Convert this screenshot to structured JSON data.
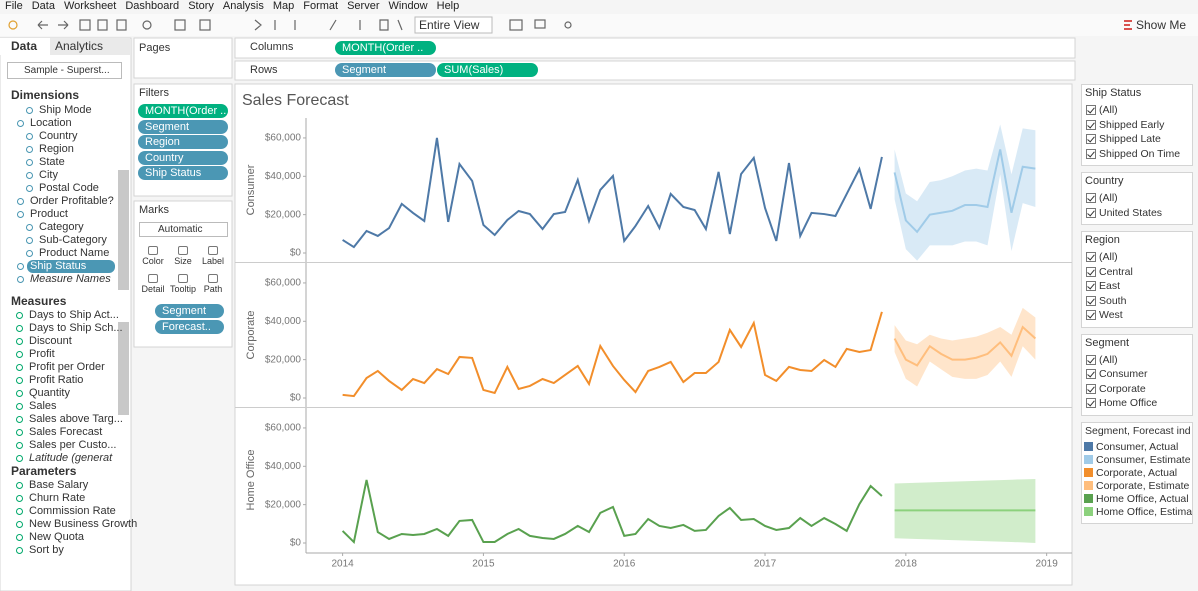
{
  "menu": [
    "File",
    "Data",
    "Worksheet",
    "Dashboard",
    "Story",
    "Analysis",
    "Map",
    "Format",
    "Server",
    "Window",
    "Help"
  ],
  "toolbar": {
    "fit": "Entire View",
    "show_me": "Show Me"
  },
  "data_pane": {
    "tabs": [
      "Data",
      "Analytics"
    ],
    "datasource": "Sample - Superst...",
    "dimensions": {
      "title": "Dimensions",
      "items": [
        "Ship Mode",
        "Location",
        "Country",
        "Region",
        "State",
        "City",
        "Postal Code",
        "Order Profitable?",
        "Product",
        "Category",
        "Sub-Category",
        "Product Name",
        "Ship Status",
        "Measure Names"
      ]
    },
    "measures": {
      "title": "Measures",
      "items": [
        "Days to Ship Act...",
        "Days to Ship Sch...",
        "Discount",
        "Profit",
        "Profit per Order",
        "Profit Ratio",
        "Quantity",
        "Sales",
        "Sales above Targ...",
        "Sales Forecast",
        "Sales per Custo...",
        "Latitude (generat"
      ]
    },
    "parameters": {
      "title": "Parameters",
      "items": [
        "Base Salary",
        "Churn Rate",
        "Commission Rate",
        "New Business Growth",
        "New Quota",
        "Sort by"
      ]
    }
  },
  "cards": {
    "pages": "Pages",
    "filters": {
      "title": "Filters",
      "pills": [
        "MONTH(Order ..",
        "Segment",
        "Region",
        "Country",
        "Ship Status"
      ]
    },
    "marks": {
      "title": "Marks",
      "type": "Automatic",
      "buttons": [
        "Color",
        "Size",
        "Label",
        "Detail",
        "Tooltip",
        "Path"
      ],
      "pills": [
        "Segment",
        "Forecast.."
      ]
    }
  },
  "shelves": {
    "columns": {
      "label": "Columns",
      "pills": [
        "MONTH(Order .."
      ]
    },
    "rows": {
      "label": "Rows",
      "pills": [
        "Segment",
        "SUM(Sales)"
      ]
    }
  },
  "quick_filters": [
    {
      "title": "Ship Status",
      "items": [
        "(All)",
        "Shipped Early",
        "Shipped Late",
        "Shipped On Time"
      ]
    },
    {
      "title": "Country",
      "items": [
        "(All)",
        "United States"
      ]
    },
    {
      "title": "Region",
      "items": [
        "(All)",
        "Central",
        "East",
        "South",
        "West"
      ]
    },
    {
      "title": "Segment",
      "items": [
        "(All)",
        "Consumer",
        "Corporate",
        "Home Office"
      ]
    }
  ],
  "chart_data": {
    "type": "line",
    "title": "Sales Forecast",
    "legend_title": "Segment, Forecast ind..",
    "xlim": [
      2013.74,
      2019.18
    ],
    "xticks": [
      2014,
      2015,
      2016,
      2017,
      2018,
      2019
    ],
    "x": [
      2014,
      2014.08,
      2014.17,
      2014.25,
      2014.33,
      2014.42,
      2014.5,
      2014.58,
      2014.67,
      2014.75,
      2014.83,
      2014.92,
      2015,
      2015.08,
      2015.17,
      2015.25,
      2015.33,
      2015.42,
      2015.5,
      2015.58,
      2015.67,
      2015.75,
      2015.83,
      2015.92,
      2016,
      2016.08,
      2016.17,
      2016.25,
      2016.33,
      2016.42,
      2016.5,
      2016.58,
      2016.67,
      2016.75,
      2016.83,
      2016.92,
      2017,
      2017.08,
      2017.17,
      2017.25,
      2017.33,
      2017.42,
      2017.5,
      2017.58,
      2017.67,
      2017.75,
      2017.83
    ],
    "forecast_x": [
      2017.92,
      2018,
      2018.08,
      2018.17,
      2018.25,
      2018.33,
      2018.42,
      2018.5,
      2018.58,
      2018.67,
      2018.75,
      2018.83,
      2018.92
    ],
    "panes": [
      {
        "label": "Consumer",
        "ylim": [
          -4700,
          70400
        ],
        "yticks": [
          {
            "value": 0,
            "label": "$0"
          },
          {
            "value": 20000,
            "label": "$20,000"
          },
          {
            "value": 40000,
            "label": "$40,000"
          },
          {
            "value": 60000,
            "label": "$60,000"
          }
        ],
        "series": [
          {
            "name": "Consumer, Actual",
            "color": "#4e79a7",
            "values": [
              6800,
              3100,
              11500,
              8900,
              13000,
              25600,
              20900,
              16700,
              60000,
              16200,
              46400,
              37600,
              14600,
              9400,
              17200,
              21900,
              20300,
              12500,
              20300,
              21400,
              38100,
              16700,
              32900,
              40200,
              6300,
              14100,
              24500,
              13000,
              30800,
              24000,
              22400,
              12500,
              42300,
              9900,
              41200,
              49600,
              23500,
              6300,
              46900,
              8900,
              20900,
              20300,
              19300,
              30800,
              43800,
              23000,
              50100
            ]
          },
          {
            "name": "Consumer, Estimate",
            "color": "#a0cbe8",
            "values": [
              42000,
              17000,
              11000,
              20000,
              21000,
              22000,
              25000,
              25000,
              24000,
              54000,
              21000,
              45000,
              44000
            ],
            "lower": [
              28000,
              2000,
              -4000,
              4000,
              4000,
              4000,
              6000,
              6000,
              4000,
              41000,
              1000,
              26000,
              24000
            ],
            "upper": [
              54000,
              31000,
              27000,
              37000,
              38000,
              40000,
              43000,
              44000,
              43000,
              67000,
              41000,
              65000,
              64000
            ]
          }
        ]
      },
      {
        "label": "Corporate",
        "ylim": [
          -4700,
          70400
        ],
        "yticks": [
          {
            "value": 0,
            "label": "$0"
          },
          {
            "value": 20000,
            "label": "$20,000"
          },
          {
            "value": 40000,
            "label": "$40,000"
          },
          {
            "value": 60000,
            "label": "$60,000"
          }
        ],
        "series": [
          {
            "name": "Corporate, Actual",
            "color": "#f28e2b",
            "values": [
              1600,
              1000,
              10400,
              14100,
              8900,
              4200,
              9900,
              7800,
              15100,
              12500,
              21400,
              20900,
              4200,
              2600,
              16200,
              4700,
              6300,
              9900,
              7800,
              12000,
              16700,
              7300,
              27100,
              16700,
              9400,
              3100,
              14100,
              16200,
              18800,
              8300,
              13000,
              13000,
              18800,
              35500,
              26600,
              39100,
              12000,
              8900,
              16200,
              14600,
              14100,
              19800,
              16200,
              25600,
              24000,
              25000,
              44900
            ]
          },
          {
            "name": "Corporate, Estimate",
            "color": "#ffbe7d",
            "values": [
              31000,
              20000,
              17000,
              27000,
              23000,
              20000,
              20000,
              21000,
              23000,
              29000,
              22000,
              37000,
              31000
            ],
            "lower": [
              24000,
              10000,
              6000,
              19000,
              15000,
              11000,
              10000,
              10000,
              12000,
              19000,
              11000,
              27000,
              20000
            ],
            "upper": [
              38000,
              30000,
              28000,
              33000,
              31000,
              30000,
              31000,
              32000,
              34000,
              37000,
              33000,
              47000,
              42000
            ]
          }
        ]
      },
      {
        "label": "Home Office",
        "ylim": [
          -4700,
          70400
        ],
        "yticks": [
          {
            "value": 0,
            "label": "$0"
          },
          {
            "value": 20000,
            "label": "$20,000"
          },
          {
            "value": 40000,
            "label": "$40,000"
          },
          {
            "value": 60000,
            "label": "$60,000"
          }
        ],
        "series": [
          {
            "name": "Home Office, Actual",
            "color": "#59a14f",
            "values": [
              6300,
              500,
              32900,
              5700,
              2100,
              4700,
              4200,
              4700,
              7300,
              3700,
              11500,
              12000,
              500,
              500,
              4700,
              7300,
              3700,
              2600,
              2100,
              4700,
              8900,
              5700,
              15700,
              18800,
              3700,
              4700,
              12500,
              8900,
              7800,
              9400,
              6300,
              6800,
              14100,
              18300,
              12000,
              12500,
              8900,
              6800,
              7800,
              13000,
              8900,
              13000,
              9900,
              6300,
              20300,
              29700,
              24500
            ]
          },
          {
            "name": "Home Office, Estima..",
            "color": "#8cd17d",
            "values": [
              17000,
              17000,
              17000,
              17000,
              17000,
              17000,
              17000,
              17000,
              17000,
              17000,
              17000,
              17000,
              17000
            ],
            "lower": [
              2500,
              2300,
              2100,
              1900,
              1700,
              1500,
              1300,
              1100,
              900,
              700,
              500,
              300,
              0
            ],
            "upper": [
              31000,
              31200,
              31400,
              31600,
              31800,
              32000,
              32200,
              32400,
              32600,
              32800,
              33000,
              33200,
              33400
            ]
          }
        ]
      }
    ]
  }
}
